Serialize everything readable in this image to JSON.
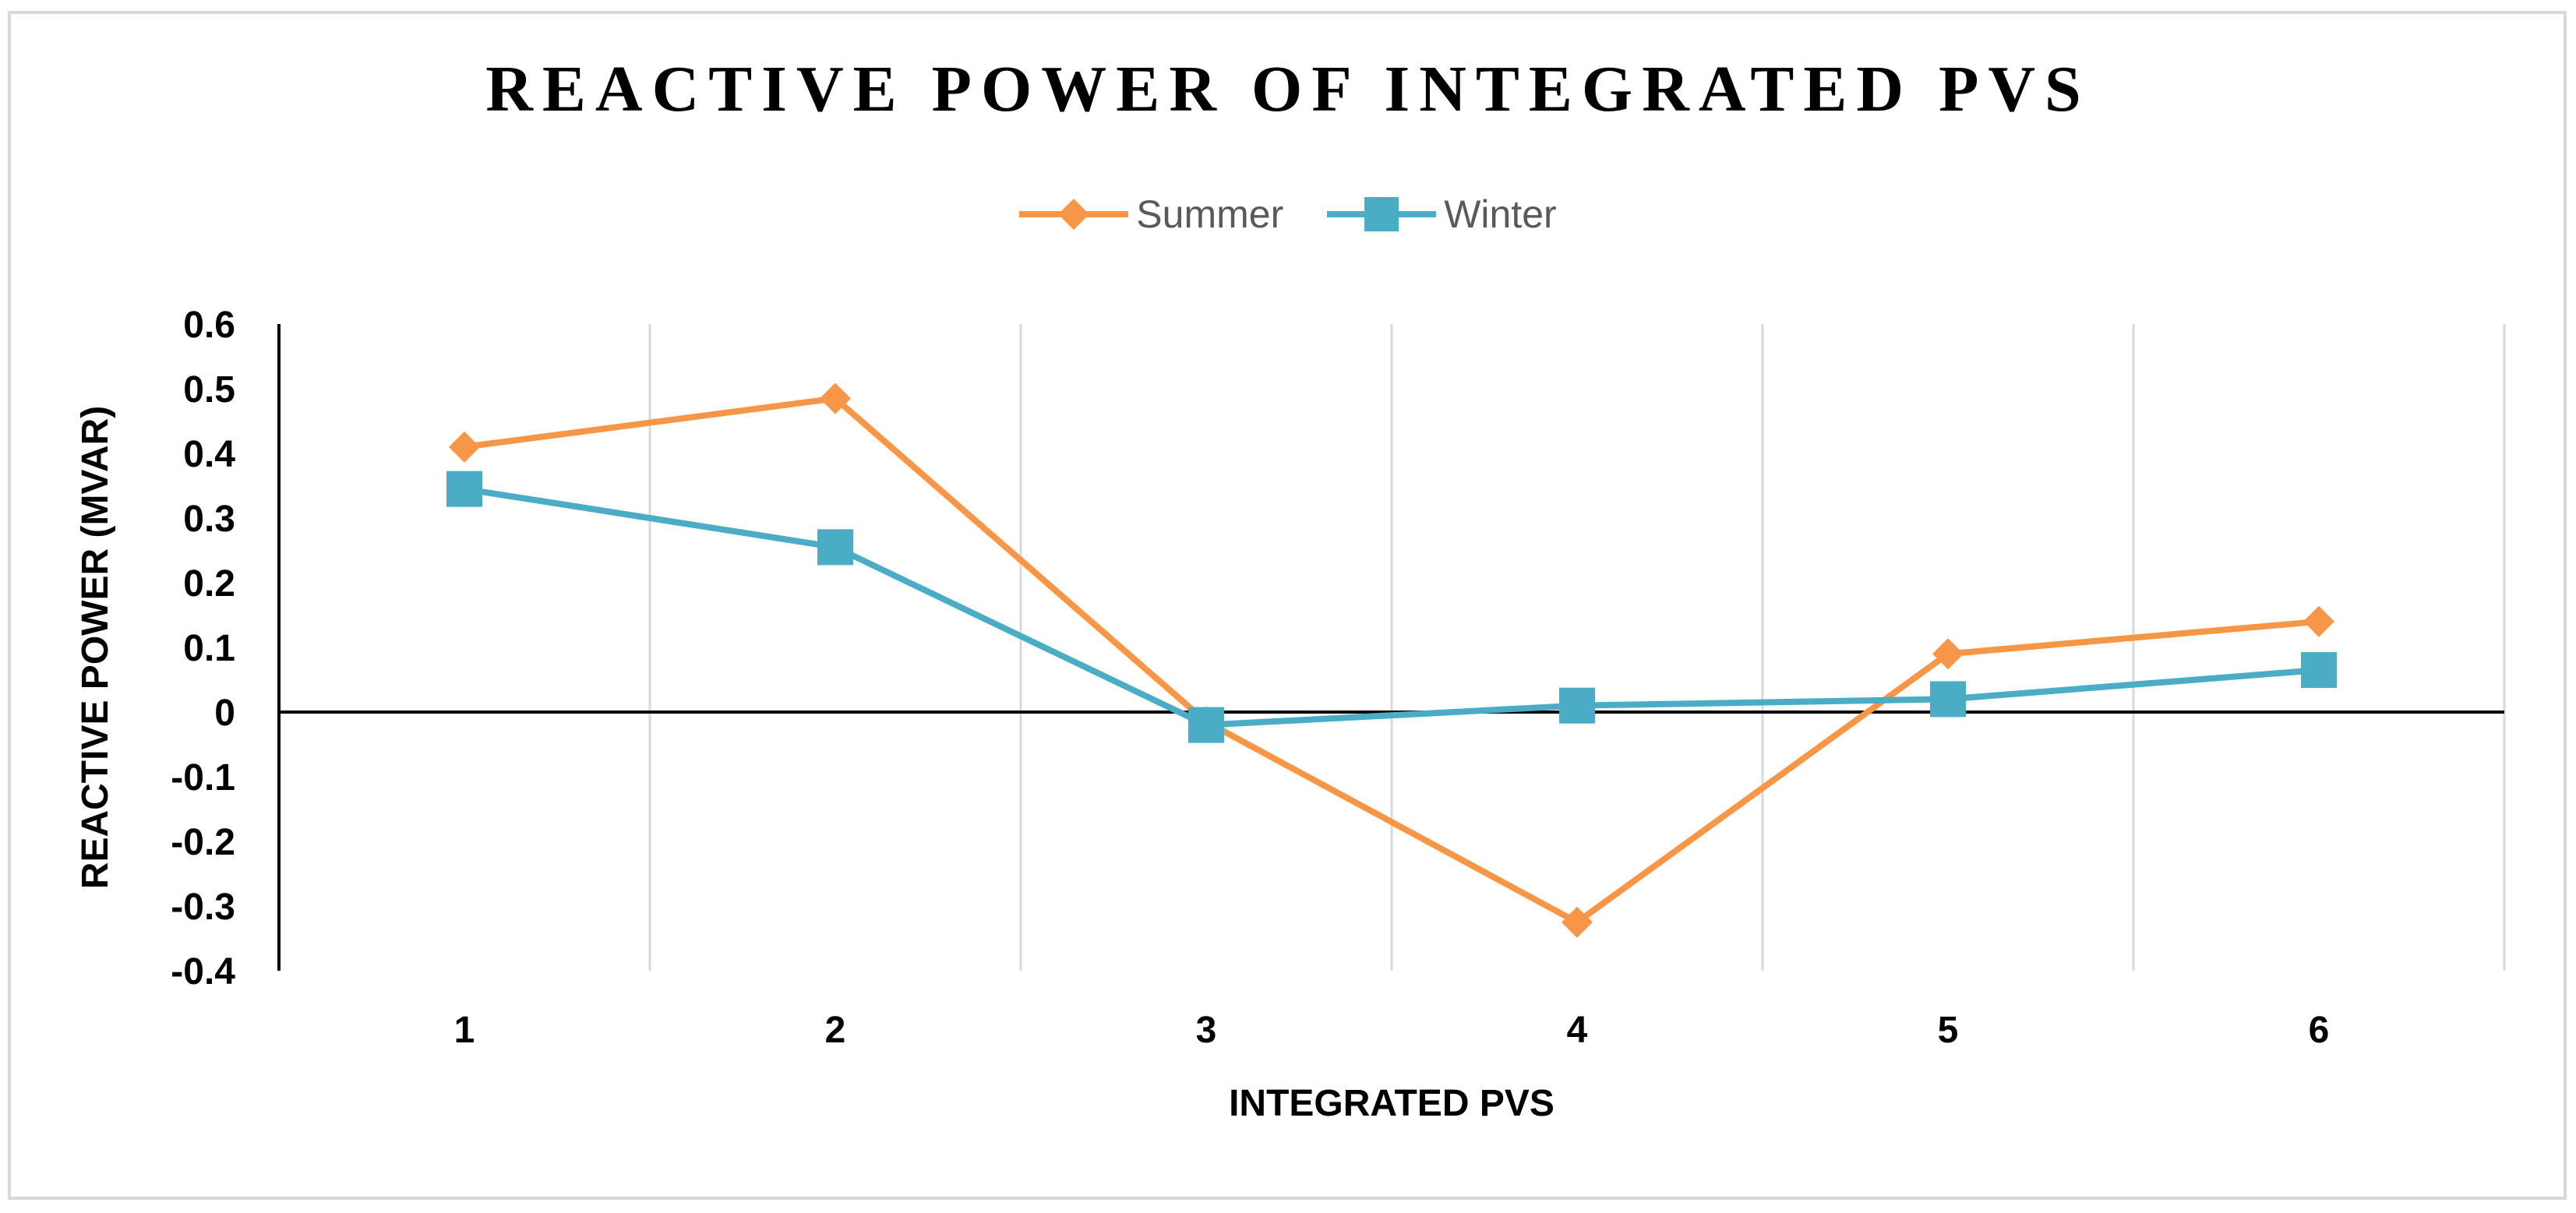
{
  "chart_data": {
    "type": "line",
    "title": "REACTIVE POWER OF INTEGRATED PVS",
    "xlabel": "INTEGRATED PVS",
    "ylabel": "REACTIVE POWER (MVAR)",
    "categories": [
      "1",
      "2",
      "3",
      "4",
      "5",
      "6"
    ],
    "ylim": [
      -0.4,
      0.6
    ],
    "yticks": [
      0.6,
      0.5,
      0.4,
      0.3,
      0.2,
      0.1,
      0,
      -0.1,
      -0.2,
      -0.3,
      -0.4
    ],
    "ytick_labels": [
      "0.6",
      "0.5",
      "0.4",
      "0.3",
      "0.2",
      "0.1",
      "0",
      "-0.1",
      "-0.2",
      "-0.3",
      "-0.4"
    ],
    "grid": "vertical",
    "legend_position": "top-center",
    "series": [
      {
        "name": "Summer",
        "marker": "diamond",
        "color": "#f79646",
        "values": [
          0.41,
          0.485,
          -0.015,
          -0.325,
          0.09,
          0.14
        ]
      },
      {
        "name": "Winter",
        "marker": "square",
        "color": "#4bacc6",
        "values": [
          0.345,
          0.255,
          -0.02,
          0.01,
          0.02,
          0.065
        ]
      }
    ]
  }
}
